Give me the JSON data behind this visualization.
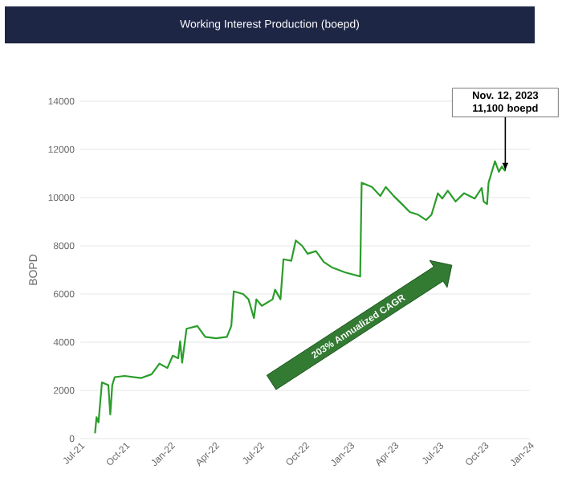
{
  "chart_data": {
    "type": "line",
    "title": "Working Interest Production (boepd)",
    "ylabel": "BOPD",
    "x": [
      "2021-07-31",
      "2021-08-03",
      "2021-08-07",
      "2021-08-14",
      "2021-08-27",
      "2021-08-31",
      "2021-09-04",
      "2021-09-09",
      "2021-09-29",
      "2021-11-01",
      "2021-11-23",
      "2021-12-09",
      "2021-12-25",
      "2022-01-05",
      "2022-01-16",
      "2022-01-20",
      "2022-01-24",
      "2022-02-02",
      "2022-02-24",
      "2022-03-12",
      "2022-04-03",
      "2022-04-25",
      "2022-05-04",
      "2022-05-09",
      "2022-05-28",
      "2022-06-08",
      "2022-06-19",
      "2022-06-24",
      "2022-07-05",
      "2022-07-27",
      "2022-08-01",
      "2022-08-12",
      "2022-08-18",
      "2022-09-03",
      "2022-09-12",
      "2022-09-25",
      "2022-10-06",
      "2022-10-23",
      "2022-11-08",
      "2022-11-24",
      "2022-12-22",
      "2023-01-21",
      "2023-01-24",
      "2023-02-14",
      "2023-03-03",
      "2023-03-14",
      "2023-03-30",
      "2023-04-16",
      "2023-05-02",
      "2023-05-19",
      "2023-06-04",
      "2023-06-15",
      "2023-06-28",
      "2023-07-07",
      "2023-07-18",
      "2023-08-03",
      "2023-08-20",
      "2023-09-11",
      "2023-09-25",
      "2023-09-29",
      "2023-10-06",
      "2023-10-09",
      "2023-10-22",
      "2023-10-30",
      "2023-11-05",
      "2023-11-12"
    ],
    "values": [
      220,
      890,
      670,
      2330,
      2220,
      1000,
      2220,
      2550,
      2600,
      2510,
      2670,
      3110,
      2930,
      3440,
      3330,
      4040,
      3150,
      4560,
      4670,
      4220,
      4160,
      4220,
      4670,
      6110,
      6000,
      5780,
      5000,
      5780,
      5510,
      5780,
      6180,
      5780,
      7440,
      7380,
      8220,
      8000,
      7670,
      7780,
      7330,
      7110,
      6890,
      6730,
      10620,
      10440,
      10070,
      10440,
      10070,
      9730,
      9400,
      9290,
      9070,
      9290,
      10180,
      9960,
      10290,
      9840,
      10180,
      9960,
      10400,
      9840,
      9730,
      10620,
      11510,
      11070,
      11290,
      11100
    ],
    "color": "#2a9d2a",
    "xlim": [
      "2021-07-01",
      "2024-01-01"
    ],
    "xticks": [
      {
        "value": "2021-07-01",
        "label": "Jul-21"
      },
      {
        "value": "2021-10-01",
        "label": "Oct-21"
      },
      {
        "value": "2022-01-01",
        "label": "Jan-22"
      },
      {
        "value": "2022-04-01",
        "label": "Apr-22"
      },
      {
        "value": "2022-07-01",
        "label": "Jul-22"
      },
      {
        "value": "2022-10-01",
        "label": "Oct-22"
      },
      {
        "value": "2023-01-01",
        "label": "Jan-23"
      },
      {
        "value": "2023-04-01",
        "label": "Apr-23"
      },
      {
        "value": "2023-07-01",
        "label": "Jul-23"
      },
      {
        "value": "2023-10-01",
        "label": "Oct-23"
      },
      {
        "value": "2024-01-01",
        "label": "Jan-24"
      }
    ],
    "ylim": [
      0,
      14000
    ],
    "yticks": [
      0,
      2000,
      4000,
      6000,
      8000,
      10000,
      12000,
      14000
    ],
    "grid": "y",
    "annotations": [
      {
        "text": "Nov. 12, 2023 11,100 boepd",
        "x": "2023-11-12",
        "y": 11100
      },
      "203% Annualized CAGR"
    ]
  }
}
